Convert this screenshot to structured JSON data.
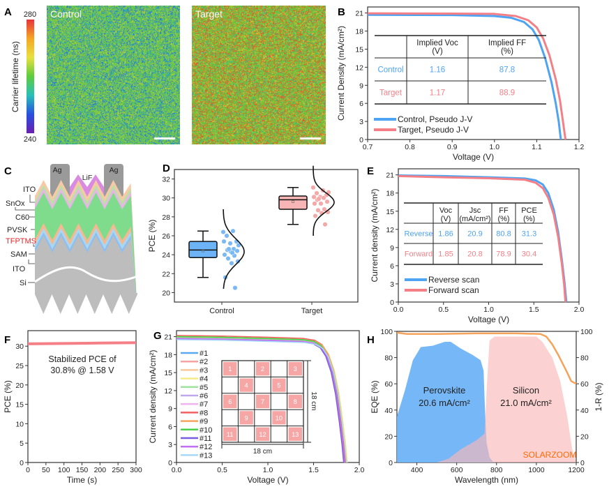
{
  "panel_labels": [
    "A",
    "B",
    "C",
    "D",
    "E",
    "F",
    "G",
    "H"
  ],
  "panel_a": {
    "maps": [
      {
        "title": "Control",
        "speckle": "blue"
      },
      {
        "title": "Target",
        "speckle": "red"
      }
    ],
    "colorbar": {
      "label": "Carrier lifetime (ns)",
      "max": "280",
      "min": "240",
      "colors": [
        "#e8323c",
        "#f5a623",
        "#e8e040",
        "#5dcc3c",
        "#28c0b8",
        "#2850e0",
        "#6a1fb0"
      ]
    }
  },
  "panel_c": {
    "layers": [
      "Ag",
      "LiF",
      "Ag",
      "ITO",
      "SnOx",
      "C60",
      "PVSK",
      "TFPTMS",
      "SAM",
      "ITO",
      "Si"
    ],
    "highlight_color": "#e8262c"
  },
  "chart_data": [
    {
      "panel": "B",
      "type": "line",
      "xlabel": "Voltage (V)",
      "ylabel": "Current Density (mA/cm²)",
      "xlim": [
        0.7,
        1.2
      ],
      "ylim": [
        0,
        22
      ],
      "xticks": [
        0.7,
        0.8,
        0.9,
        1.0,
        1.1,
        1.2
      ],
      "yticks": [
        0,
        3,
        6,
        9,
        12,
        15,
        18,
        21
      ],
      "series": [
        {
          "name": "Control, Pseudo J-V",
          "color": "#4ea3f2",
          "points": [
            [
              0.7,
              20.7
            ],
            [
              0.9,
              20.65
            ],
            [
              1.0,
              20.5
            ],
            [
              1.04,
              20.2
            ],
            [
              1.07,
              19.5
            ],
            [
              1.09,
              18.3
            ],
            [
              1.105,
              16.5
            ],
            [
              1.12,
              13.5
            ],
            [
              1.135,
              9.5
            ],
            [
              1.145,
              6
            ],
            [
              1.152,
              3
            ],
            [
              1.157,
              0
            ]
          ]
        },
        {
          "name": "Target, Pseudo J-V",
          "color": "#f57f86",
          "points": [
            [
              0.7,
              20.95
            ],
            [
              0.9,
              20.9
            ],
            [
              1.0,
              20.85
            ],
            [
              1.05,
              20.5
            ],
            [
              1.08,
              19.8
            ],
            [
              1.1,
              18.6
            ],
            [
              1.115,
              16.8
            ],
            [
              1.13,
              14
            ],
            [
              1.145,
              10
            ],
            [
              1.155,
              6.5
            ],
            [
              1.162,
              3
            ],
            [
              1.168,
              0
            ]
          ]
        }
      ],
      "table": {
        "headers": [
          "",
          "Implied Voc\n(V)",
          "Implied FF\n(%)"
        ],
        "rows": [
          [
            "Control",
            "1.16",
            "87.8"
          ],
          [
            "Target",
            "1.17",
            "88.9"
          ]
        ]
      },
      "legend": "bottom-left"
    },
    {
      "panel": "D",
      "type": "box",
      "ylabel": "PCE (%)",
      "categories": [
        "Control",
        "Target"
      ],
      "ylim": [
        19,
        33
      ],
      "yticks": [
        20,
        22,
        24,
        26,
        28,
        30,
        32
      ],
      "groups": [
        {
          "name": "Control",
          "color": "#6cb4f5",
          "dot_color": "#7ab9f3",
          "min": 21.6,
          "q1": 23.7,
          "median": 24.5,
          "mean": 24.4,
          "q3": 25.4,
          "max": 26.5,
          "values": [
            26.4,
            26.5,
            26.0,
            25.4,
            25.2,
            25.4,
            24.6,
            24.5,
            24.4,
            24.3,
            24.0,
            23.9,
            23.6,
            23.3,
            23.1,
            21.6,
            20.5,
            24.6,
            25.0,
            24.2
          ]
        },
        {
          "name": "Target",
          "color": "#f7b5b5",
          "dot_color": "#f5a8a8",
          "min": 27.2,
          "q1": 28.8,
          "median": 29.8,
          "mean": 29.6,
          "q3": 30.2,
          "max": 31.1,
          "values": [
            31.1,
            30.8,
            30.5,
            30.3,
            30.1,
            30.1,
            30.0,
            29.8,
            29.6,
            29.4,
            29.4,
            28.8,
            28.7,
            28.5,
            28.4,
            28.1,
            27.2,
            29.9,
            30.6
          ]
        }
      ]
    },
    {
      "panel": "E",
      "type": "line",
      "xlabel": "Voltage (V)",
      "ylabel": "Current density (mA/cm²)",
      "xlim": [
        0,
        2.0
      ],
      "ylim": [
        0,
        22
      ],
      "xticks": [
        0.0,
        0.5,
        1.0,
        1.5,
        2.0
      ],
      "yticks": [
        0,
        3,
        6,
        9,
        12,
        15,
        18,
        21
      ],
      "series": [
        {
          "name": "Reverse scan",
          "color": "#4ea3f2",
          "points": [
            [
              0,
              20.9
            ],
            [
              0.5,
              20.8
            ],
            [
              1.0,
              20.6
            ],
            [
              1.4,
              20.4
            ],
            [
              1.52,
              20.1
            ],
            [
              1.6,
              19.4
            ],
            [
              1.66,
              18
            ],
            [
              1.72,
              15.3
            ],
            [
              1.77,
              11.5
            ],
            [
              1.81,
              7
            ],
            [
              1.84,
              3.2
            ],
            [
              1.86,
              0
            ]
          ]
        },
        {
          "name": "Forward scan",
          "color": "#f57f86",
          "points": [
            [
              0,
              20.8
            ],
            [
              0.5,
              20.6
            ],
            [
              1.0,
              20.45
            ],
            [
              1.4,
              20.2
            ],
            [
              1.52,
              19.7
            ],
            [
              1.6,
              18.8
            ],
            [
              1.66,
              17.2
            ],
            [
              1.72,
              14.5
            ],
            [
              1.77,
              10.7
            ],
            [
              1.81,
              6.3
            ],
            [
              1.835,
              3
            ],
            [
              1.85,
              0
            ]
          ]
        }
      ],
      "table": {
        "headers": [
          "",
          "Voc\n(V)",
          "Jsc\n(mA/cm²)",
          "FF\n(%)",
          "PCE\n(%)"
        ],
        "rows": [
          [
            "Reverse",
            "1.86",
            "20.9",
            "80.8",
            "31.3"
          ],
          [
            "Forward",
            "1.85",
            "20.8",
            "78.9",
            "30.4"
          ]
        ]
      },
      "legend": "bottom-left"
    },
    {
      "panel": "F",
      "type": "line",
      "xlabel": "Time (s)",
      "ylabel": "PCE (%)",
      "xlim": [
        0,
        300
      ],
      "ylim": [
        0,
        34
      ],
      "xticks": [
        0,
        50,
        100,
        150,
        200,
        250,
        300
      ],
      "yticks": [
        0,
        5,
        10,
        15,
        20,
        25,
        30
      ],
      "series": [
        {
          "color": "#f57f86",
          "points": [
            [
              0,
              30.6
            ],
            [
              100,
              30.7
            ],
            [
              200,
              30.8
            ],
            [
              300,
              30.9
            ]
          ]
        }
      ],
      "annotation": "Stabilized PCE of\n30.8% @ 1.58 V"
    },
    {
      "panel": "G",
      "type": "line",
      "xlabel": "Voltage (V)",
      "ylabel": "Current density (mA/cm²)",
      "xlim": [
        0,
        2.0
      ],
      "ylim": [
        0,
        22
      ],
      "xticks": [
        0.0,
        0.5,
        1.0,
        1.5,
        2.0
      ],
      "yticks": [
        0,
        3,
        6,
        9,
        12,
        15,
        18,
        21
      ],
      "series": [
        {
          "name": "#1",
          "color": "#5aa9f0",
          "jsc": 20.7,
          "voc": 1.84
        },
        {
          "name": "#2",
          "color": "#f7a3a3",
          "jsc": 20.8,
          "voc": 1.85
        },
        {
          "name": "#3",
          "color": "#f8c89a",
          "jsc": 20.9,
          "voc": 1.86
        },
        {
          "name": "#4",
          "color": "#f4ec86",
          "jsc": 20.8,
          "voc": 1.87
        },
        {
          "name": "#5",
          "color": "#9fe39f",
          "jsc": 20.9,
          "voc": 1.85
        },
        {
          "name": "#6",
          "color": "#c0a8f0",
          "jsc": 20.6,
          "voc": 1.84
        },
        {
          "name": "#7",
          "color": "#f0b4f0",
          "jsc": 20.7,
          "voc": 1.85
        },
        {
          "name": "#8",
          "color": "#f06060",
          "jsc": 21.2,
          "voc": 1.85
        },
        {
          "name": "#9",
          "color": "#f7a35c",
          "jsc": 21.0,
          "voc": 1.86
        },
        {
          "name": "#10",
          "color": "#4cd04c",
          "jsc": 21.0,
          "voc": 1.84
        },
        {
          "name": "#11",
          "color": "#7a5ce0",
          "jsc": 20.6,
          "voc": 1.83
        },
        {
          "name": "#12",
          "color": "#c070f0",
          "jsc": 20.7,
          "voc": 1.84
        },
        {
          "name": "#13",
          "color": "#a8d8f8",
          "jsc": 20.5,
          "voc": 1.86
        }
      ],
      "inset": {
        "cells": [
          "1",
          "2",
          "3",
          "4",
          "5",
          "6",
          "7",
          "8",
          "9",
          "10",
          "11",
          "12",
          "13"
        ],
        "width_label": "18 cm",
        "height_label": "18 cm"
      },
      "legend": "left"
    },
    {
      "panel": "H",
      "type": "area",
      "xlabel": "Wavelength (nm)",
      "ylabel": "EQE (%)",
      "y2label": "1-R (%)",
      "xlim": [
        300,
        1200
      ],
      "ylim": [
        0,
        100
      ],
      "xticks": [
        400,
        600,
        800,
        1000,
        1200
      ],
      "yticks": [
        0,
        20,
        40,
        60,
        80,
        100
      ],
      "series": [
        {
          "name": "Perovskite",
          "label": "Perovskite\n20.6 mA/cm²",
          "color": "#6fb3f7",
          "points": [
            [
              300,
              35
            ],
            [
              340,
              55
            ],
            [
              380,
              78
            ],
            [
              420,
              88
            ],
            [
              480,
              89
            ],
            [
              540,
              92
            ],
            [
              570,
              92
            ],
            [
              620,
              87
            ],
            [
              680,
              82
            ],
            [
              720,
              78
            ],
            [
              735,
              70
            ],
            [
              742,
              40
            ],
            [
              750,
              15
            ],
            [
              765,
              4
            ],
            [
              785,
              0
            ]
          ]
        },
        {
          "name": "Silicon",
          "label": "Silicon\n21.0 mA/cm²",
          "color": "#fbb8b8",
          "points": [
            [
              500,
              0
            ],
            [
              560,
              3
            ],
            [
              620,
              10
            ],
            [
              700,
              17
            ],
            [
              740,
              22
            ],
            [
              752,
              60
            ],
            [
              765,
              93
            ],
            [
              790,
              96
            ],
            [
              900,
              96
            ],
            [
              1000,
              96
            ],
            [
              1030,
              92
            ],
            [
              1080,
              80
            ],
            [
              1120,
              62
            ],
            [
              1155,
              35
            ],
            [
              1180,
              10
            ],
            [
              1200,
              0
            ]
          ]
        },
        {
          "name": "1-R",
          "color": "#f5a35a",
          "axis": "right",
          "points": [
            [
              300,
              99
            ],
            [
              350,
              98
            ],
            [
              500,
              98
            ],
            [
              700,
              98.5
            ],
            [
              900,
              98.5
            ],
            [
              1020,
              98
            ],
            [
              1050,
              96
            ],
            [
              1080,
              90
            ],
            [
              1110,
              82
            ],
            [
              1150,
              70
            ],
            [
              1175,
              62
            ],
            [
              1200,
              60
            ]
          ]
        }
      ],
      "watermark": "SOLARZOOM"
    }
  ]
}
